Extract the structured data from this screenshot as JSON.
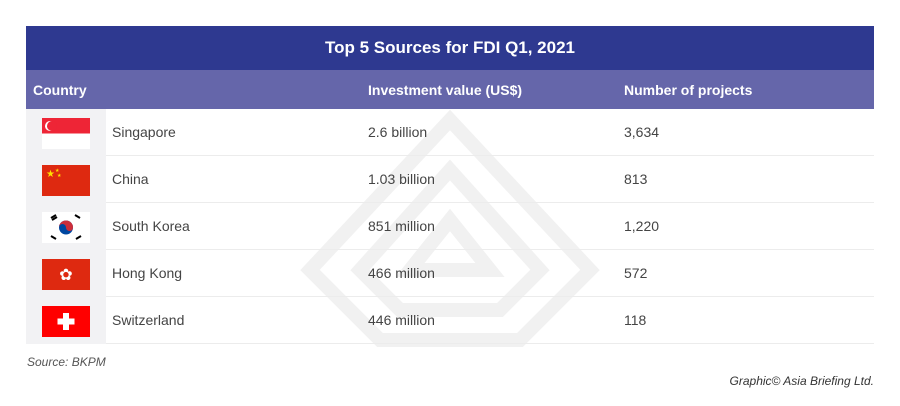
{
  "chart_data": {
    "type": "table",
    "title": "Top 5 Sources for FDI Q1, 2021",
    "columns": [
      "Country",
      "Investment value (US$)",
      "Number of projects"
    ],
    "rows": [
      {
        "country": "Singapore",
        "flag": "singapore-flag",
        "investment": "2.6 billion",
        "projects": "3,634"
      },
      {
        "country": "China",
        "flag": "china-flag",
        "investment": "1.03 billion",
        "projects": "813"
      },
      {
        "country": "South Korea",
        "flag": "south-korea-flag",
        "investment": "851 million",
        "projects": "1,220"
      },
      {
        "country": "Hong Kong",
        "flag": "hong-kong-flag",
        "investment": "466 million",
        "projects": "572"
      },
      {
        "country": "Switzerland",
        "flag": "switzerland-flag",
        "investment": "446 million",
        "projects": "118"
      }
    ]
  },
  "source": "Source: BKPM",
  "credit": "Graphic© Asia Briefing Ltd.",
  "colors": {
    "title_bg": "#2e3990",
    "header_bg": "#6566aa"
  }
}
